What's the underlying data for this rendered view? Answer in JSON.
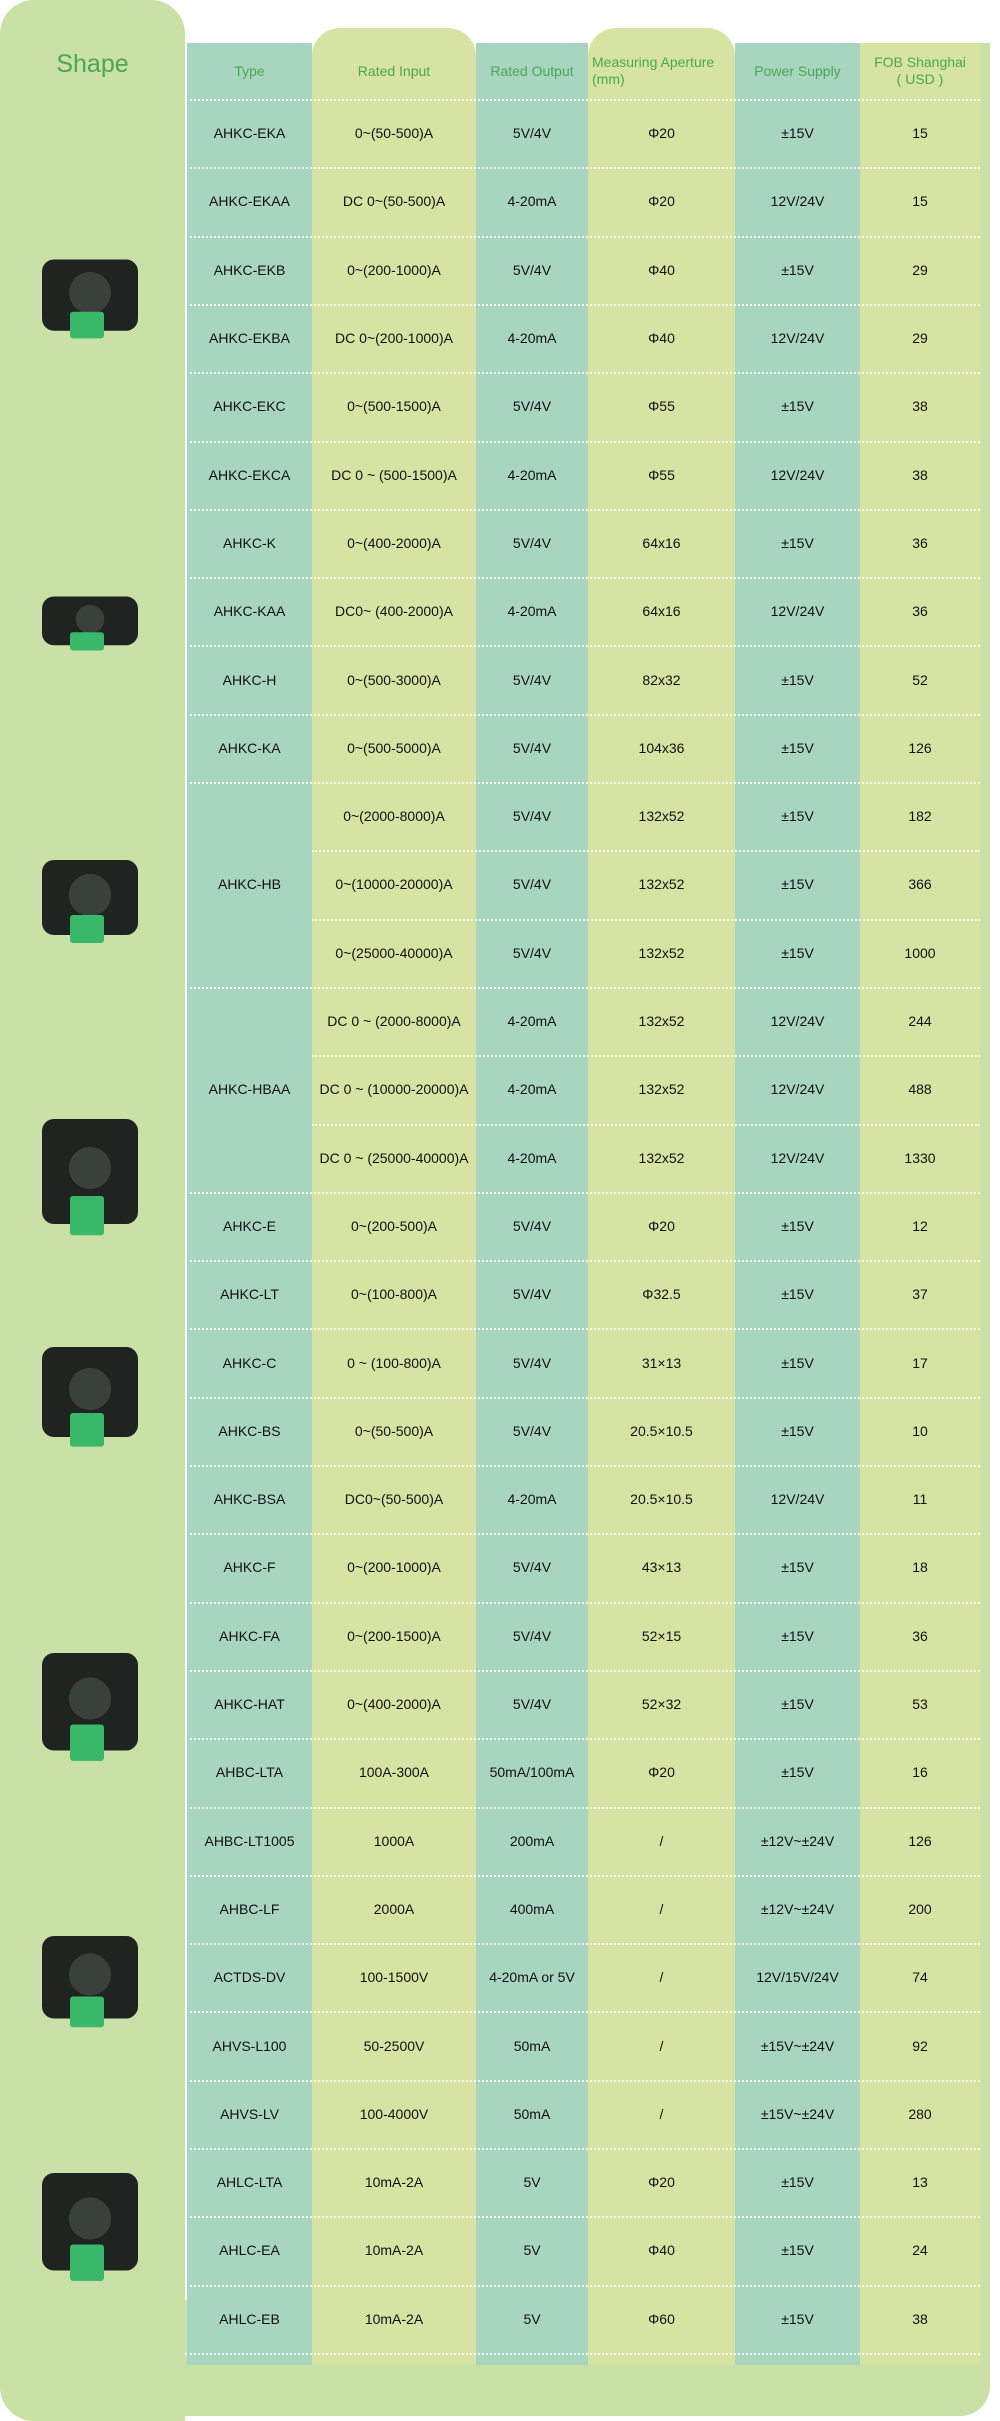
{
  "colors": {
    "panel": "#c9e0a6",
    "teal": "#a8d5c0",
    "yellow_green": "#d6e3a3",
    "header_text": "#4aa84e"
  },
  "header": {
    "shape": "Shape",
    "type": "Type",
    "rated_input": "Rated Input",
    "rated_output": "Rated Output",
    "aperture": "Measuring Aperture (mm)",
    "power": "Power Supply",
    "fob": "FOB Shanghai ( USD )"
  },
  "products": [
    {
      "type": "AHKC-EKA",
      "variants": [
        {
          "input": "0~(50-500)A",
          "output": "5V/4V",
          "aperture": "Φ20",
          "power": "±15V",
          "price": "15"
        }
      ]
    },
    {
      "type": "AHKC-EKAA",
      "variants": [
        {
          "input": "DC 0~(50-500)A",
          "output": "4-20mA",
          "aperture": "Φ20",
          "power": "12V/24V",
          "price": "15"
        }
      ]
    },
    {
      "type": "AHKC-EKB",
      "variants": [
        {
          "input": "0~(200-1000)A",
          "output": "5V/4V",
          "aperture": "Φ40",
          "power": "±15V",
          "price": "29"
        }
      ]
    },
    {
      "type": "AHKC-EKBA",
      "variants": [
        {
          "input": "DC 0~(200-1000)A",
          "output": "4-20mA",
          "aperture": "Φ40",
          "power": "12V/24V",
          "price": "29"
        }
      ]
    },
    {
      "type": "AHKC-EKC",
      "variants": [
        {
          "input": "0~(500-1500)A",
          "output": "5V/4V",
          "aperture": "Φ55",
          "power": "±15V",
          "price": "38"
        }
      ]
    },
    {
      "type": "AHKC-EKCA",
      "variants": [
        {
          "input": "DC 0 ~ (500-1500)A",
          "output": "4-20mA",
          "aperture": "Φ55",
          "power": "12V/24V",
          "price": "38"
        }
      ]
    },
    {
      "type": "AHKC-K",
      "variants": [
        {
          "input": "0~(400-2000)A",
          "output": "5V/4V",
          "aperture": "64x16",
          "power": "±15V",
          "price": "36"
        }
      ]
    },
    {
      "type": "AHKC-KAA",
      "variants": [
        {
          "input": "DC0~ (400-2000)A",
          "output": "4-20mA",
          "aperture": "64x16",
          "power": "12V/24V",
          "price": "36"
        }
      ]
    },
    {
      "type": "AHKC-H",
      "variants": [
        {
          "input": "0~(500-3000)A",
          "output": "5V/4V",
          "aperture": "82x32",
          "power": "±15V",
          "price": "52"
        }
      ]
    },
    {
      "type": "AHKC-KA",
      "variants": [
        {
          "input": "0~(500-5000)A",
          "output": "5V/4V",
          "aperture": "104x36",
          "power": "±15V",
          "price": "126"
        }
      ]
    },
    {
      "type": "AHKC-HB",
      "variants": [
        {
          "input": "0~(2000-8000)A",
          "output": "5V/4V",
          "aperture": "132x52",
          "power": "±15V",
          "price": "182"
        },
        {
          "input": "0~(10000-20000)A",
          "output": "5V/4V",
          "aperture": "132x52",
          "power": "±15V",
          "price": "366"
        },
        {
          "input": "0~(25000-40000)A",
          "output": "5V/4V",
          "aperture": "132x52",
          "power": "±15V",
          "price": "1000"
        }
      ]
    },
    {
      "type": "AHKC-HBAA",
      "variants": [
        {
          "input": "DC 0 ~ (2000-8000)A",
          "output": "4-20mA",
          "aperture": "132x52",
          "power": "12V/24V",
          "price": "244"
        },
        {
          "input": "DC 0 ~ (10000-20000)A",
          "output": "4-20mA",
          "aperture": "132x52",
          "power": "12V/24V",
          "price": "488"
        },
        {
          "input": "DC 0 ~ (25000-40000)A",
          "output": "4-20mA",
          "aperture": "132x52",
          "power": "12V/24V",
          "price": "1330"
        }
      ]
    },
    {
      "type": "AHKC-E",
      "variants": [
        {
          "input": "0~(200-500)A",
          "output": "5V/4V",
          "aperture": "Φ20",
          "power": "±15V",
          "price": "12"
        }
      ]
    },
    {
      "type": "AHKC-LT",
      "variants": [
        {
          "input": "0~(100-800)A",
          "output": "5V/4V",
          "aperture": "Φ32.5",
          "power": "±15V",
          "price": "37"
        }
      ]
    },
    {
      "type": "AHKC-C",
      "variants": [
        {
          "input": "0 ~ (100-800)A",
          "output": "5V/4V",
          "aperture": "31×13",
          "power": "±15V",
          "price": "17"
        }
      ]
    },
    {
      "type": "AHKC-BS",
      "variants": [
        {
          "input": "0~(50-500)A",
          "output": "5V/4V",
          "aperture": "20.5×10.5",
          "power": "±15V",
          "price": "10"
        }
      ]
    },
    {
      "type": "AHKC-BSA",
      "variants": [
        {
          "input": "DC0~(50-500)A",
          "output": "4-20mA",
          "aperture": "20.5×10.5",
          "power": "12V/24V",
          "price": "11"
        }
      ]
    },
    {
      "type": "AHKC-F",
      "variants": [
        {
          "input": "0~(200-1000)A",
          "output": "5V/4V",
          "aperture": "43×13",
          "power": "±15V",
          "price": "18"
        }
      ]
    },
    {
      "type": "AHKC-FA",
      "variants": [
        {
          "input": "0~(200-1500)A",
          "output": "5V/4V",
          "aperture": "52×15",
          "power": "±15V",
          "price": "36"
        }
      ]
    },
    {
      "type": "AHKC-HAT",
      "variants": [
        {
          "input": "0~(400-2000)A",
          "output": "5V/4V",
          "aperture": "52×32",
          "power": "±15V",
          "price": "53"
        }
      ]
    },
    {
      "type": "AHBC-LTA",
      "variants": [
        {
          "input": "100A-300A",
          "output": "50mA/100mA",
          "aperture": "Φ20",
          "power": "±15V",
          "price": "16"
        }
      ]
    },
    {
      "type": "AHBC-LT1005",
      "variants": [
        {
          "input": "1000A",
          "output": "200mA",
          "aperture": "/",
          "power": "±12V~±24V",
          "price": "126"
        }
      ]
    },
    {
      "type": "AHBC-LF",
      "variants": [
        {
          "input": "2000A",
          "output": "400mA",
          "aperture": "/",
          "power": "±12V~±24V",
          "price": "200"
        }
      ]
    },
    {
      "type": "ACTDS-DV",
      "variants": [
        {
          "input": "100-1500V",
          "output": "4-20mA or 5V",
          "aperture": "/",
          "power": "12V/15V/24V",
          "price": "74"
        }
      ]
    },
    {
      "type": "AHVS-L100",
      "variants": [
        {
          "input": "50-2500V",
          "output": "50mA",
          "aperture": "/",
          "power": "±15V~±24V",
          "price": "92"
        }
      ]
    },
    {
      "type": "AHVS-LV",
      "variants": [
        {
          "input": "100-4000V",
          "output": "50mA",
          "aperture": "/",
          "power": "±15V~±24V",
          "price": "280"
        }
      ]
    },
    {
      "type": "AHLC-LTA",
      "variants": [
        {
          "input": "10mA-2A",
          "output": "5V",
          "aperture": "Φ20",
          "power": "±15V",
          "price": "13"
        }
      ]
    },
    {
      "type": "AHLC-EA",
      "variants": [
        {
          "input": "10mA-2A",
          "output": "5V",
          "aperture": "Φ40",
          "power": "±15V",
          "price": "24"
        }
      ]
    },
    {
      "type": "AHLC-EB",
      "variants": [
        {
          "input": "10mA-2A",
          "output": "5V",
          "aperture": "Φ60",
          "power": "±15V",
          "price": "38"
        }
      ]
    }
  ],
  "photos": [
    "split-core-sensor",
    "rectangular-sensor",
    "large-window-sensor",
    "round-window-sensor",
    "compact-sensor",
    "open-loop-sensor",
    "din-rail-transducer",
    "leakage-sensor"
  ]
}
